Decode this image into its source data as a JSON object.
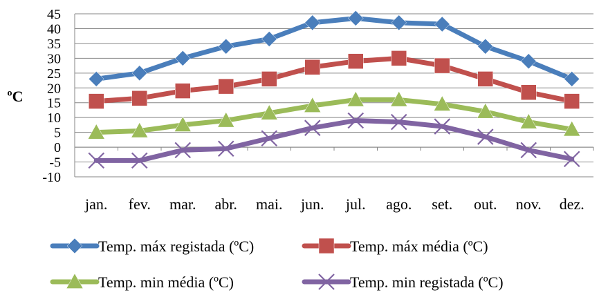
{
  "chart_data": {
    "type": "line",
    "title": "",
    "xlabel": "",
    "ylabel": "ºC",
    "ylim": [
      -10,
      45
    ],
    "yticks": [
      -10,
      -5,
      0,
      5,
      10,
      15,
      20,
      25,
      30,
      35,
      40,
      45
    ],
    "grid": true,
    "legend_position": "bottom",
    "categories": [
      "jan.",
      "fev.",
      "mar.",
      "abr.",
      "mai.",
      "jun.",
      "jul.",
      "ago.",
      "set.",
      "out.",
      "nov.",
      "dez."
    ],
    "series": [
      {
        "name": "Temp. máx registada (ºC)",
        "color": "#4A7EBB",
        "marker": "diamond",
        "values": [
          23,
          25,
          30,
          34,
          36.5,
          42,
          43.5,
          42,
          41.5,
          34,
          29,
          23
        ]
      },
      {
        "name": "Temp. máx média (ºC)",
        "color": "#C0504D",
        "marker": "square",
        "values": [
          15.5,
          16.5,
          19,
          20.5,
          23,
          27,
          29,
          30,
          27.5,
          23,
          18.5,
          15.5
        ]
      },
      {
        "name": "Temp. min média (ºC)",
        "color": "#9BBB59",
        "marker": "triangle",
        "values": [
          5,
          5.5,
          7.5,
          9,
          11.5,
          14,
          16,
          16,
          14.5,
          12,
          8.5,
          6
        ]
      },
      {
        "name": "Temp. min registada (ºC)",
        "color": "#8064A2",
        "marker": "x",
        "values": [
          -4.5,
          -4.5,
          -1,
          -0.5,
          3,
          6.5,
          9,
          8.5,
          7,
          3.5,
          -1,
          -4
        ]
      }
    ]
  }
}
